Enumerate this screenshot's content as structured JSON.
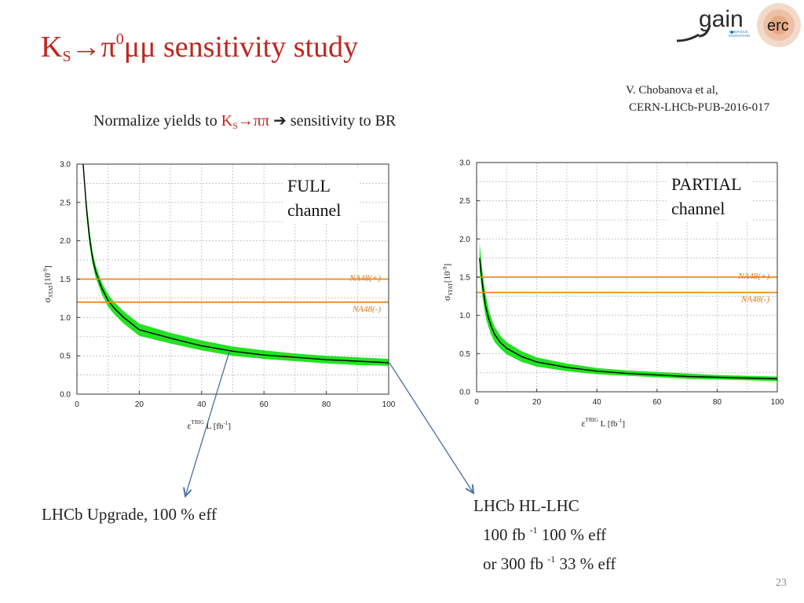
{
  "title": {
    "ks": "K",
    "ks_sub": "S",
    "arrow": "→π",
    "pi_sup": "0",
    "rest": "μμ sensitivity study"
  },
  "logo": {
    "gain": "gain",
    "small1": "AMBITIOUS",
    "small2": "INNOVATION",
    "erc": "erc"
  },
  "reference": {
    "line1": "V. Chobanova et al,",
    "line2": "CERN-LHCb-PUB-2016-017"
  },
  "normalize": {
    "pre": "Normalize yields to ",
    "ks": "K",
    "ks_sub": "S",
    "ks_rest": "→ππ",
    "arrow": "➔",
    "post": " sensitivity to BR"
  },
  "colors": {
    "title": "#c0261f",
    "band": "#22e222",
    "na48": "#f08a1e"
  },
  "chart_data": [
    {
      "type": "line",
      "box_label_1": "FULL",
      "box_label_2": "channel",
      "ylabel": "σ",
      "ylabel_sub": "STAT",
      "ylabel_unit": "[10",
      "ylabel_exp": "-9",
      "ylabel_end": "]",
      "xlabel": "ε",
      "xlabel_sup": "TRIG",
      "xlabel_rest": " L [fb",
      "xlabel_exp": "-1",
      "xlabel_end": "]",
      "xlim": [
        0,
        100
      ],
      "ylim": [
        0,
        3.0
      ],
      "xticks": [
        "0",
        "20",
        "40",
        "60",
        "80",
        "100"
      ],
      "yticks": [
        "0.0",
        "0.5",
        "1.0",
        "1.5",
        "2.0",
        "2.5",
        "3.0"
      ],
      "grid": true,
      "x": [
        2,
        3,
        4,
        5,
        6,
        8,
        10,
        12,
        15,
        20,
        30,
        40,
        50,
        60,
        70,
        80,
        90,
        100
      ],
      "series": [
        {
          "values": [
            3.0,
            2.45,
            2.05,
            1.78,
            1.6,
            1.38,
            1.22,
            1.12,
            1.0,
            0.84,
            0.73,
            0.63,
            0.56,
            0.51,
            0.48,
            0.45,
            0.43,
            0.41
          ]
        },
        {
          "values": [
            3.0,
            2.55,
            2.15,
            1.86,
            1.68,
            1.45,
            1.3,
            1.2,
            1.08,
            0.92,
            0.8,
            0.7,
            0.62,
            0.57,
            0.53,
            0.5,
            0.48,
            0.46
          ]
        },
        {
          "values": [
            3.0,
            2.35,
            1.95,
            1.7,
            1.52,
            1.3,
            1.14,
            1.04,
            0.92,
            0.76,
            0.66,
            0.57,
            0.5,
            0.46,
            0.43,
            0.4,
            0.38,
            0.37
          ]
        }
      ],
      "hlines": [
        {
          "name": "NA48(+)",
          "value": 1.5
        },
        {
          "name": "NA48(-)",
          "value": 1.2
        }
      ]
    },
    {
      "type": "line",
      "box_label_1": "PARTIAL",
      "box_label_2": "channel",
      "ylabel": "σ",
      "ylabel_sub": "STAT",
      "ylabel_unit": "[10",
      "ylabel_exp": "-9",
      "ylabel_end": "]",
      "xlabel": "ε",
      "xlabel_sup": "TRIG",
      "xlabel_rest": " L [fb",
      "xlabel_exp": "-1",
      "xlabel_end": "]",
      "xlim": [
        0,
        100
      ],
      "ylim": [
        0,
        3.0
      ],
      "xticks": [
        "0",
        "20",
        "40",
        "60",
        "80",
        "100"
      ],
      "yticks": [
        "0.0",
        "0.5",
        "1.0",
        "1.5",
        "2.0",
        "2.5",
        "3.0"
      ],
      "grid": true,
      "x": [
        1,
        2,
        3,
        4,
        5,
        6,
        8,
        10,
        15,
        20,
        30,
        40,
        50,
        60,
        70,
        80,
        90,
        100
      ],
      "series": [
        {
          "values": [
            1.75,
            1.38,
            1.12,
            0.96,
            0.84,
            0.75,
            0.64,
            0.57,
            0.46,
            0.39,
            0.32,
            0.27,
            0.24,
            0.22,
            0.2,
            0.19,
            0.18,
            0.17
          ]
        },
        {
          "values": [
            1.95,
            1.55,
            1.28,
            1.08,
            0.95,
            0.85,
            0.73,
            0.65,
            0.53,
            0.45,
            0.37,
            0.31,
            0.28,
            0.26,
            0.24,
            0.22,
            0.21,
            0.2
          ]
        },
        {
          "values": [
            1.6,
            1.22,
            0.98,
            0.84,
            0.73,
            0.65,
            0.56,
            0.49,
            0.39,
            0.33,
            0.27,
            0.23,
            0.21,
            0.19,
            0.17,
            0.16,
            0.15,
            0.14
          ]
        }
      ],
      "hlines": [
        {
          "name": "NA48(+)",
          "value": 1.5
        },
        {
          "name": "NA48(-)",
          "value": 1.3
        }
      ]
    }
  ],
  "notes": {
    "left": "LHCb Upgrade, 100 % eff",
    "right_l1": "LHCb HL-LHC",
    "right_l2a": "100 fb ",
    "right_l2b": "-1",
    "right_l2c": " 100 % eff",
    "right_l3a": "or  300 fb ",
    "right_l3b": "-1",
    "right_l3c": " 33 % eff"
  },
  "page_number": "23"
}
